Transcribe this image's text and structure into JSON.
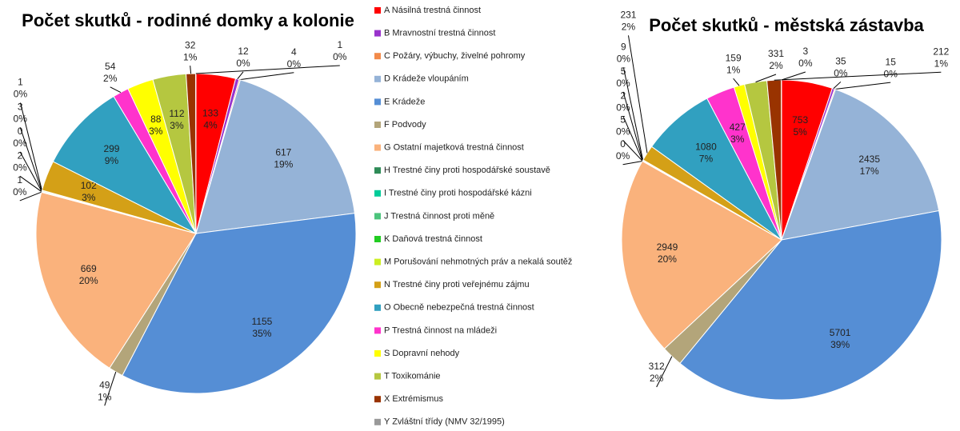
{
  "chart_data": [
    {
      "type": "pie",
      "title": "Počet skutků - rodinné domky a kolonie",
      "categories": [
        "A Násilná trestná činnost",
        "B Mravnostní trestná činnost",
        "C Požáry, výbuchy, živelné pohromy",
        "D Krádeže vloupáním",
        "E Krádeže",
        "F Podvody",
        "G Ostatní majetková trestná činnost",
        "H Trestné činy proti hospodářské soustavě",
        "I Trestné činy proti hospodářské kázni",
        "J Trestná činnost proti měně",
        "K Daňová trestná činnost",
        "M Porušování nehmotných práv a nekalá soutěž",
        "N Trestné činy proti veřejnému zájmu",
        "O Obecně nebezpečná trestná činnost",
        "P Trestná činnost na mládeži",
        "S Dopravní nehody",
        "T Toxikománie",
        "X Extrémismus",
        "Y Zvláštní třídy (NMV 32/1995)"
      ],
      "colors": [
        "#ff0000",
        "#9933cc",
        "#f28a4a",
        "#95b3d7",
        "#558ed5",
        "#b3a57a",
        "#fab27c",
        "#2e8b57",
        "#00cc99",
        "#4cc47c",
        "#22cc22",
        "#ccee22",
        "#d4a017",
        "#31a0c0",
        "#ff33cc",
        "#ffff00",
        "#b5c740",
        "#993300",
        "#999999"
      ],
      "values": [
        133,
        12,
        4,
        617,
        1155,
        49,
        669,
        1,
        2,
        0,
        3,
        1,
        102,
        299,
        54,
        88,
        112,
        32,
        1
      ],
      "percent_labels": [
        "4%",
        "0%",
        "0%",
        "19%",
        "35%",
        "1%",
        "20%",
        "0%",
        "0%",
        "0%",
        "0%",
        "0%",
        "3%",
        "9%",
        "2%",
        "3%",
        "3%",
        "1%",
        "0%"
      ]
    },
    {
      "type": "pie",
      "title": "Počet skutků - městská zástavba",
      "values": [
        753,
        35,
        15,
        2435,
        5701,
        312,
        2949,
        0,
        5,
        2,
        5,
        9,
        231,
        1080,
        427,
        159,
        331,
        212,
        3
      ],
      "percent_labels": [
        "5%",
        "0%",
        "0%",
        "17%",
        "39%",
        "2%",
        "20%",
        "0%",
        "0%",
        "0%",
        "0%",
        "0%",
        "2%",
        "7%",
        "3%",
        "1%",
        "2%",
        "1%",
        "0%"
      ]
    }
  ]
}
